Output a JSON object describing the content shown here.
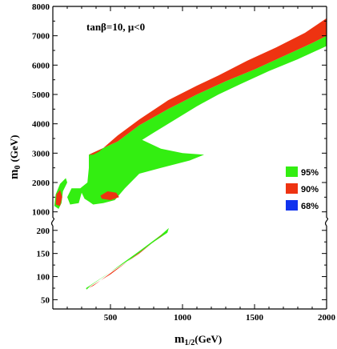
{
  "chart_data": {
    "type": "area",
    "title": "",
    "annotation": "tanβ=10, μ<0",
    "xlabel_main": "m",
    "xlabel_sub": "1/2",
    "xlabel_unit": "(GeV)",
    "ylabel_main": "m",
    "ylabel_sub": "0",
    "ylabel_unit": "(GeV)",
    "xlim": [
      100,
      2000
    ],
    "x_ticks": [
      500,
      1000,
      1500,
      2000
    ],
    "y_upper_ticks": [
      1000,
      2000,
      3000,
      4000,
      5000,
      6000,
      7000,
      8000
    ],
    "y_lower_ticks": [
      50,
      100,
      150,
      200
    ],
    "y_upper_range": [
      800,
      8000
    ],
    "y_lower_range": [
      30,
      210
    ],
    "axis_break": true,
    "legend": [
      {
        "label": "95%",
        "color": "#33ee11"
      },
      {
        "label": "90%",
        "color": "#ee3311"
      },
      {
        "label": "68%",
        "color": "#1133ee"
      }
    ],
    "regions": {
      "upper_green_band": [
        [
          350,
          2950
        ],
        [
          550,
          3400
        ],
        [
          700,
          3950
        ],
        [
          900,
          4500
        ],
        [
          1100,
          5000
        ],
        [
          1300,
          5450
        ],
        [
          1500,
          5850
        ],
        [
          1700,
          6300
        ],
        [
          1900,
          6750
        ],
        [
          2000,
          7000
        ],
        [
          2000,
          6650
        ],
        [
          1800,
          6200
        ],
        [
          1600,
          5800
        ],
        [
          1400,
          5350
        ],
        [
          1250,
          5000
        ],
        [
          1100,
          4600
        ],
        [
          950,
          4150
        ],
        [
          800,
          3700
        ],
        [
          720,
          3450
        ],
        [
          850,
          3150
        ],
        [
          1000,
          3000
        ],
        [
          1150,
          2950
        ],
        [
          1050,
          2750
        ],
        [
          850,
          2500
        ],
        [
          700,
          2300
        ],
        [
          600,
          1800
        ],
        [
          530,
          1400
        ],
        [
          450,
          1300
        ],
        [
          380,
          1250
        ],
        [
          350,
          1350
        ],
        [
          320,
          1450
        ],
        [
          300,
          1650
        ],
        [
          280,
          1300
        ],
        [
          220,
          1250
        ],
        [
          200,
          1500
        ],
        [
          230,
          1800
        ],
        [
          290,
          1800
        ],
        [
          340,
          2000
        ],
        [
          350,
          2500
        ]
      ],
      "upper_red_band": [
        [
          350,
          2950
        ],
        [
          550,
          3400
        ],
        [
          700,
          3950
        ],
        [
          900,
          4500
        ],
        [
          1100,
          5000
        ],
        [
          1300,
          5450
        ],
        [
          1500,
          5850
        ],
        [
          1700,
          6300
        ],
        [
          1900,
          6750
        ],
        [
          2000,
          7000
        ],
        [
          2000,
          7600
        ],
        [
          1850,
          7100
        ],
        [
          1650,
          6600
        ],
        [
          1450,
          6150
        ],
        [
          1250,
          5650
        ],
        [
          1100,
          5300
        ],
        [
          900,
          4800
        ],
        [
          700,
          4150
        ],
        [
          550,
          3600
        ],
        [
          420,
          3050
        ],
        [
          380,
          2950
        ]
      ],
      "upper_red_island": [
        [
          430,
          1550
        ],
        [
          480,
          1700
        ],
        [
          540,
          1650
        ],
        [
          560,
          1500
        ],
        [
          500,
          1400
        ],
        [
          440,
          1450
        ]
      ],
      "left_green_island": [
        [
          110,
          1200
        ],
        [
          120,
          1600
        ],
        [
          150,
          1950
        ],
        [
          190,
          2150
        ],
        [
          200,
          2000
        ],
        [
          170,
          1700
        ],
        [
          160,
          1300
        ],
        [
          140,
          1100
        ]
      ],
      "left_red_island": [
        [
          120,
          1250
        ],
        [
          125,
          1600
        ],
        [
          150,
          1750
        ],
        [
          165,
          1500
        ],
        [
          150,
          1200
        ]
      ],
      "lower_green_band": [
        [
          330,
          75
        ],
        [
          500,
          110
        ],
        [
          700,
          155
        ],
        [
          850,
          190
        ],
        [
          905,
          205
        ],
        [
          895,
          195
        ],
        [
          800,
          175
        ],
        [
          650,
          140
        ],
        [
          500,
          110
        ],
        [
          360,
          80
        ],
        [
          335,
          72
        ]
      ],
      "lower_red_band": [
        [
          340,
          74
        ],
        [
          500,
          105
        ],
        [
          650,
          140
        ],
        [
          800,
          175
        ],
        [
          870,
          195
        ],
        [
          850,
          188
        ],
        [
          700,
          150
        ],
        [
          520,
          112
        ],
        [
          380,
          80
        ],
        [
          345,
          75
        ]
      ]
    }
  }
}
